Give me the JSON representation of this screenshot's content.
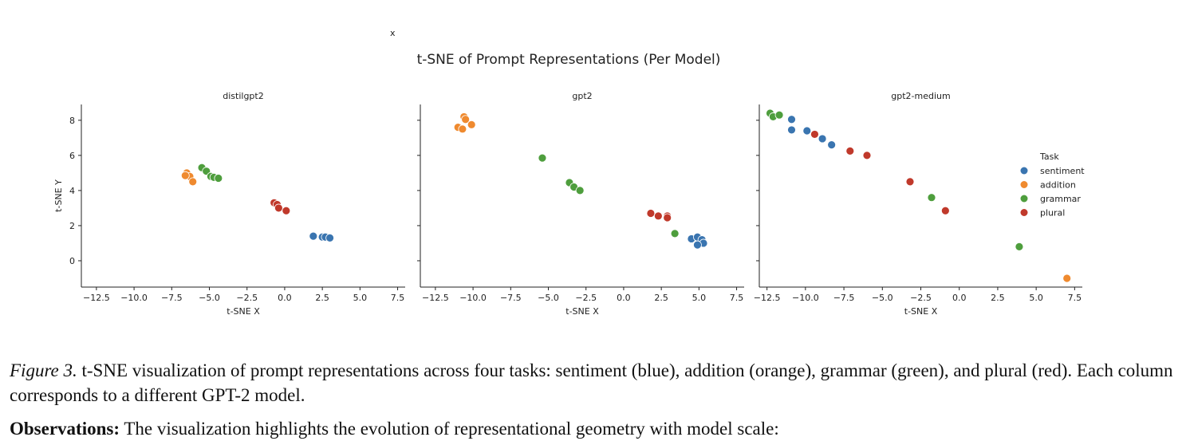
{
  "figure": {
    "stray_mark": "x",
    "suptitle": "t-SNE of Prompt Representations (Per Model)"
  },
  "caption": {
    "label": "Figure 3.",
    "text": " t-SNE visualization of prompt representations across four tasks: sentiment (blue), addition (orange), grammar (green), and plural (red). Each column corresponds to a different GPT-2 model."
  },
  "observations": {
    "label": "Observations:",
    "text": " The visualization highlights the evolution of representational geometry with model scale:"
  },
  "chart_data": [
    {
      "type": "scatter",
      "title": "distilgpt2",
      "xlabel": "t-SNE X",
      "ylabel": "t-SNE Y",
      "xlim": [
        -13.5,
        8.0
      ],
      "ylim": [
        -1.5,
        8.9
      ],
      "xticks": [
        "−12.5",
        "−10.0",
        "−7.5",
        "−5.0",
        "−2.5",
        "0.0",
        "2.5",
        "5.0",
        "7.5"
      ],
      "yticks": [
        "0",
        "2",
        "4",
        "6",
        "8"
      ],
      "series": [
        {
          "name": "sentiment",
          "color": "#3a75b0",
          "points": [
            [
              1.9,
              1.4
            ],
            [
              2.5,
              1.35
            ],
            [
              2.7,
              1.35
            ],
            [
              3.0,
              1.3
            ]
          ]
        },
        {
          "name": "addition",
          "color": "#ef8a2f",
          "points": [
            [
              -6.5,
              5.0
            ],
            [
              -6.3,
              4.8
            ],
            [
              -6.6,
              4.85
            ],
            [
              -6.1,
              4.5
            ]
          ]
        },
        {
          "name": "grammar",
          "color": "#4e9e3d",
          "points": [
            [
              -5.5,
              5.3
            ],
            [
              -5.2,
              5.1
            ],
            [
              -4.9,
              4.8
            ],
            [
              -4.7,
              4.75
            ],
            [
              -4.4,
              4.7
            ]
          ]
        },
        {
          "name": "plural",
          "color": "#c0392b",
          "points": [
            [
              -0.7,
              3.3
            ],
            [
              -0.5,
              3.2
            ],
            [
              -0.4,
              3.0
            ],
            [
              0.1,
              2.85
            ]
          ]
        }
      ]
    },
    {
      "type": "scatter",
      "title": "gpt2",
      "xlabel": "t-SNE X",
      "ylabel": "",
      "xlim": [
        -13.5,
        8.0
      ],
      "ylim": [
        -1.5,
        8.9
      ],
      "xticks": [
        "−12.5",
        "−10.0",
        "−7.5",
        "−5.0",
        "−2.5",
        "0.0",
        "2.5",
        "5.0",
        "7.5"
      ],
      "yticks": [
        "0",
        "2",
        "4",
        "6",
        "8"
      ],
      "series": [
        {
          "name": "sentiment",
          "color": "#3a75b0",
          "points": [
            [
              4.5,
              1.25
            ],
            [
              4.9,
              1.35
            ],
            [
              5.2,
              1.2
            ],
            [
              5.3,
              1.0
            ],
            [
              4.9,
              0.9
            ]
          ]
        },
        {
          "name": "addition",
          "color": "#ef8a2f",
          "points": [
            [
              -10.6,
              8.2
            ],
            [
              -10.5,
              8.05
            ],
            [
              -11.0,
              7.6
            ],
            [
              -10.7,
              7.5
            ],
            [
              -10.1,
              7.75
            ]
          ]
        },
        {
          "name": "grammar",
          "color": "#4e9e3d",
          "points": [
            [
              -5.4,
              5.85
            ],
            [
              -3.6,
              4.45
            ],
            [
              -3.3,
              4.2
            ],
            [
              -2.9,
              4.0
            ],
            [
              3.4,
              1.55
            ]
          ]
        },
        {
          "name": "plural",
          "color": "#c0392b",
          "points": [
            [
              1.8,
              2.7
            ],
            [
              2.3,
              2.55
            ],
            [
              2.9,
              2.55
            ],
            [
              2.9,
              2.45
            ]
          ]
        }
      ]
    },
    {
      "type": "scatter",
      "title": "gpt2-medium",
      "xlabel": "t-SNE X",
      "ylabel": "",
      "xlim": [
        -13.0,
        8.0
      ],
      "ylim": [
        -1.5,
        8.9
      ],
      "xticks": [
        "−12.5",
        "−10.0",
        "−7.5",
        "−5.0",
        "−2.5",
        "0.0",
        "2.5",
        "5.0",
        "7.5"
      ],
      "yticks": [
        "0",
        "2",
        "4",
        "6",
        "8"
      ],
      "legend": {
        "title": "Task",
        "position": "right",
        "entries": [
          "sentiment",
          "addition",
          "grammar",
          "plural"
        ]
      },
      "series": [
        {
          "name": "sentiment",
          "color": "#3a75b0",
          "points": [
            [
              -10.9,
              8.05
            ],
            [
              -10.9,
              7.45
            ],
            [
              -9.9,
              7.4
            ],
            [
              -8.9,
              6.95
            ],
            [
              -8.3,
              6.6
            ]
          ]
        },
        {
          "name": "addition",
          "color": "#ef8a2f",
          "points": [
            [
              7.0,
              -1.0
            ]
          ]
        },
        {
          "name": "grammar",
          "color": "#4e9e3d",
          "points": [
            [
              -12.3,
              8.4
            ],
            [
              -12.1,
              8.2
            ],
            [
              -11.7,
              8.3
            ],
            [
              -1.8,
              3.6
            ],
            [
              3.9,
              0.8
            ]
          ]
        },
        {
          "name": "plural",
          "color": "#c0392b",
          "points": [
            [
              -9.4,
              7.2
            ],
            [
              -7.1,
              6.25
            ],
            [
              -6.0,
              6.0
            ],
            [
              -3.2,
              4.5
            ],
            [
              -0.9,
              2.85
            ]
          ]
        }
      ]
    }
  ]
}
